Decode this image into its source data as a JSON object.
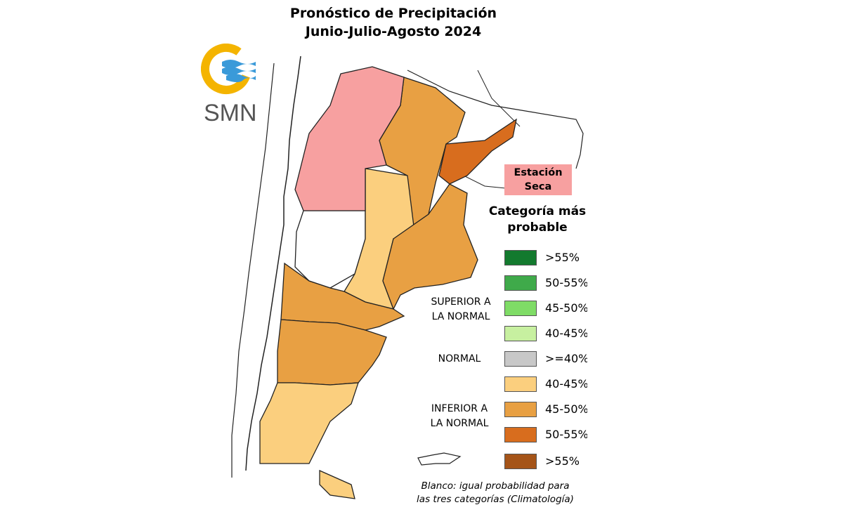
{
  "title": {
    "line1": "Pronóstico de Precipitación",
    "line2": "Junio-Julio-Agosto 2024"
  },
  "logo": {
    "text": "SMN"
  },
  "dry_season": {
    "line1": "Estación",
    "line2": "Seca",
    "color": "#f7a0a0"
  },
  "legend": {
    "title_line1": "Categoría más",
    "title_line2": "probable",
    "groups": {
      "superior_line1": "SUPERIOR A",
      "superior_line2": "LA NORMAL",
      "normal": "NORMAL",
      "inferior_line1": "INFERIOR A",
      "inferior_line2": "LA NORMAL"
    },
    "items": [
      {
        "label": ">55%",
        "color": "#137a2e"
      },
      {
        "label": "50-55%",
        "color": "#3faa4a"
      },
      {
        "label": "45-50%",
        "color": "#7fdc66"
      },
      {
        "label": "40-45%",
        "color": "#c7f0a0"
      },
      {
        "label": ">=40%",
        "color": "#c8c8c8"
      },
      {
        "label": "40-45%",
        "color": "#fbcf7e"
      },
      {
        "label": "45-50%",
        "color": "#e8a043"
      },
      {
        "label": "50-55%",
        "color": "#d86d1e"
      },
      {
        "label": ">55%",
        "color": "#a55418"
      }
    ]
  },
  "footnote": {
    "line1": "Blanco: igual probabilidad para",
    "line2": "las tres categorías (Climatología)"
  },
  "map_colors": {
    "dry": "#f7a0a0",
    "light_orange": "#fbcf7e",
    "mid_orange": "#e8a043",
    "dark_orange": "#d86d1e",
    "white": "#ffffff",
    "border": "#222222"
  }
}
